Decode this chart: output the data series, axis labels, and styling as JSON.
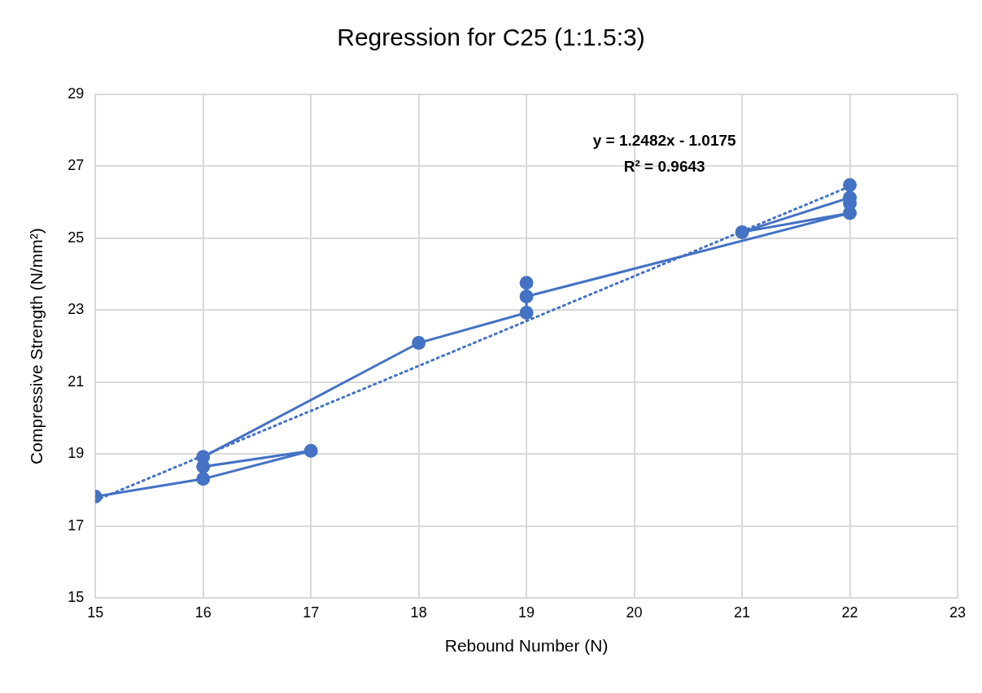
{
  "chart_data": {
    "type": "line",
    "title": "Regression for C25 (1:1.5:3)",
    "xlabel": "Rebound Number (N)",
    "ylabel": "Compressive Strength (N/mm²)",
    "annotations": [
      "y = 1.2482x - 1.0175",
      "R² = 0.9643"
    ],
    "series": [
      {
        "color": "#4472c4",
        "marker": "circle",
        "line_style": "solid",
        "x": [
          15,
          16,
          17,
          16,
          16,
          18,
          19,
          19,
          19,
          22,
          21,
          22,
          22,
          22
        ],
        "values": [
          17.82,
          18.31,
          19.09,
          18.65,
          18.92,
          22.09,
          22.93,
          23.76,
          23.38,
          25.7,
          25.17,
          26.13,
          26.48,
          25.97
        ]
      },
      {
        "color": "#4472c4",
        "marker": "none",
        "line_style": "dotted",
        "x": [
          15,
          22
        ],
        "values": [
          17.71,
          26.44
        ]
      }
    ],
    "xlim": [
      15,
      23
    ],
    "xticks": [
      15,
      16,
      17,
      18,
      19,
      20,
      21,
      22,
      23
    ],
    "ylim": [
      15,
      29
    ],
    "yticks": [
      15,
      17,
      19,
      21,
      23,
      25,
      27,
      29
    ],
    "grid": true,
    "legend": false
  }
}
